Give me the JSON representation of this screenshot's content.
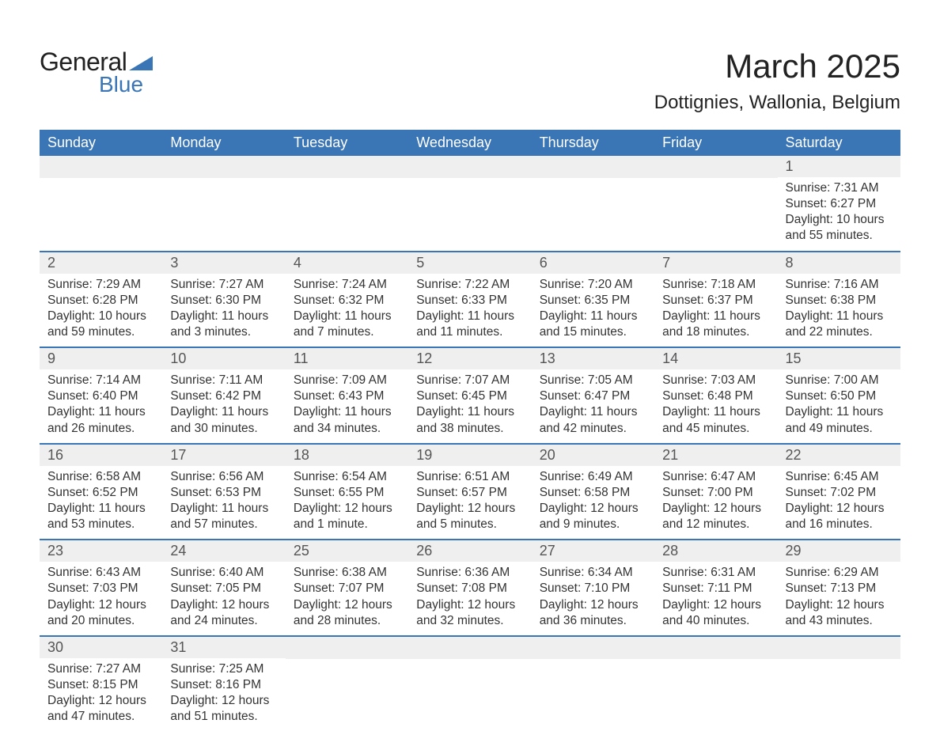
{
  "logo": {
    "text1": "General",
    "text2": "Blue",
    "triangle_color": "#3a75b5"
  },
  "title": "March 2025",
  "location": "Dottignies, Wallonia, Belgium",
  "colors": {
    "header_bg": "#3a75b5",
    "header_fg": "#ffffff",
    "daynum_bg": "#efefef",
    "daynum_fg": "#555555",
    "text": "#333333",
    "row_divider": "#3a75b5",
    "page_bg": "#ffffff"
  },
  "typography": {
    "title_fontsize": 42,
    "location_fontsize": 24,
    "dayheader_fontsize": 18,
    "daynum_fontsize": 18,
    "body_fontsize": 15.5,
    "font_family": "Arial"
  },
  "layout": {
    "columns": 7,
    "rows": 6,
    "col_width_pct": 14.28
  },
  "day_headers": [
    "Sunday",
    "Monday",
    "Tuesday",
    "Wednesday",
    "Thursday",
    "Friday",
    "Saturday"
  ],
  "labels": {
    "sunrise": "Sunrise:",
    "sunset": "Sunset:",
    "daylight": "Daylight:"
  },
  "weeks": [
    [
      {
        "blank": true
      },
      {
        "blank": true
      },
      {
        "blank": true
      },
      {
        "blank": true
      },
      {
        "blank": true
      },
      {
        "blank": true
      },
      {
        "n": "1",
        "sr": "7:31 AM",
        "ss": "6:27 PM",
        "dl1": "10 hours",
        "dl2": "and 55 minutes."
      }
    ],
    [
      {
        "n": "2",
        "sr": "7:29 AM",
        "ss": "6:28 PM",
        "dl1": "10 hours",
        "dl2": "and 59 minutes."
      },
      {
        "n": "3",
        "sr": "7:27 AM",
        "ss": "6:30 PM",
        "dl1": "11 hours",
        "dl2": "and 3 minutes."
      },
      {
        "n": "4",
        "sr": "7:24 AM",
        "ss": "6:32 PM",
        "dl1": "11 hours",
        "dl2": "and 7 minutes."
      },
      {
        "n": "5",
        "sr": "7:22 AM",
        "ss": "6:33 PM",
        "dl1": "11 hours",
        "dl2": "and 11 minutes."
      },
      {
        "n": "6",
        "sr": "7:20 AM",
        "ss": "6:35 PM",
        "dl1": "11 hours",
        "dl2": "and 15 minutes."
      },
      {
        "n": "7",
        "sr": "7:18 AM",
        "ss": "6:37 PM",
        "dl1": "11 hours",
        "dl2": "and 18 minutes."
      },
      {
        "n": "8",
        "sr": "7:16 AM",
        "ss": "6:38 PM",
        "dl1": "11 hours",
        "dl2": "and 22 minutes."
      }
    ],
    [
      {
        "n": "9",
        "sr": "7:14 AM",
        "ss": "6:40 PM",
        "dl1": "11 hours",
        "dl2": "and 26 minutes."
      },
      {
        "n": "10",
        "sr": "7:11 AM",
        "ss": "6:42 PM",
        "dl1": "11 hours",
        "dl2": "and 30 minutes."
      },
      {
        "n": "11",
        "sr": "7:09 AM",
        "ss": "6:43 PM",
        "dl1": "11 hours",
        "dl2": "and 34 minutes."
      },
      {
        "n": "12",
        "sr": "7:07 AM",
        "ss": "6:45 PM",
        "dl1": "11 hours",
        "dl2": "and 38 minutes."
      },
      {
        "n": "13",
        "sr": "7:05 AM",
        "ss": "6:47 PM",
        "dl1": "11 hours",
        "dl2": "and 42 minutes."
      },
      {
        "n": "14",
        "sr": "7:03 AM",
        "ss": "6:48 PM",
        "dl1": "11 hours",
        "dl2": "and 45 minutes."
      },
      {
        "n": "15",
        "sr": "7:00 AM",
        "ss": "6:50 PM",
        "dl1": "11 hours",
        "dl2": "and 49 minutes."
      }
    ],
    [
      {
        "n": "16",
        "sr": "6:58 AM",
        "ss": "6:52 PM",
        "dl1": "11 hours",
        "dl2": "and 53 minutes."
      },
      {
        "n": "17",
        "sr": "6:56 AM",
        "ss": "6:53 PM",
        "dl1": "11 hours",
        "dl2": "and 57 minutes."
      },
      {
        "n": "18",
        "sr": "6:54 AM",
        "ss": "6:55 PM",
        "dl1": "12 hours",
        "dl2": "and 1 minute."
      },
      {
        "n": "19",
        "sr": "6:51 AM",
        "ss": "6:57 PM",
        "dl1": "12 hours",
        "dl2": "and 5 minutes."
      },
      {
        "n": "20",
        "sr": "6:49 AM",
        "ss": "6:58 PM",
        "dl1": "12 hours",
        "dl2": "and 9 minutes."
      },
      {
        "n": "21",
        "sr": "6:47 AM",
        "ss": "7:00 PM",
        "dl1": "12 hours",
        "dl2": "and 12 minutes."
      },
      {
        "n": "22",
        "sr": "6:45 AM",
        "ss": "7:02 PM",
        "dl1": "12 hours",
        "dl2": "and 16 minutes."
      }
    ],
    [
      {
        "n": "23",
        "sr": "6:43 AM",
        "ss": "7:03 PM",
        "dl1": "12 hours",
        "dl2": "and 20 minutes."
      },
      {
        "n": "24",
        "sr": "6:40 AM",
        "ss": "7:05 PM",
        "dl1": "12 hours",
        "dl2": "and 24 minutes."
      },
      {
        "n": "25",
        "sr": "6:38 AM",
        "ss": "7:07 PM",
        "dl1": "12 hours",
        "dl2": "and 28 minutes."
      },
      {
        "n": "26",
        "sr": "6:36 AM",
        "ss": "7:08 PM",
        "dl1": "12 hours",
        "dl2": "and 32 minutes."
      },
      {
        "n": "27",
        "sr": "6:34 AM",
        "ss": "7:10 PM",
        "dl1": "12 hours",
        "dl2": "and 36 minutes."
      },
      {
        "n": "28",
        "sr": "6:31 AM",
        "ss": "7:11 PM",
        "dl1": "12 hours",
        "dl2": "and 40 minutes."
      },
      {
        "n": "29",
        "sr": "6:29 AM",
        "ss": "7:13 PM",
        "dl1": "12 hours",
        "dl2": "and 43 minutes."
      }
    ],
    [
      {
        "n": "30",
        "sr": "7:27 AM",
        "ss": "8:15 PM",
        "dl1": "12 hours",
        "dl2": "and 47 minutes."
      },
      {
        "n": "31",
        "sr": "7:25 AM",
        "ss": "8:16 PM",
        "dl1": "12 hours",
        "dl2": "and 51 minutes."
      },
      {
        "blank": true
      },
      {
        "blank": true
      },
      {
        "blank": true
      },
      {
        "blank": true
      },
      {
        "blank": true
      }
    ]
  ]
}
